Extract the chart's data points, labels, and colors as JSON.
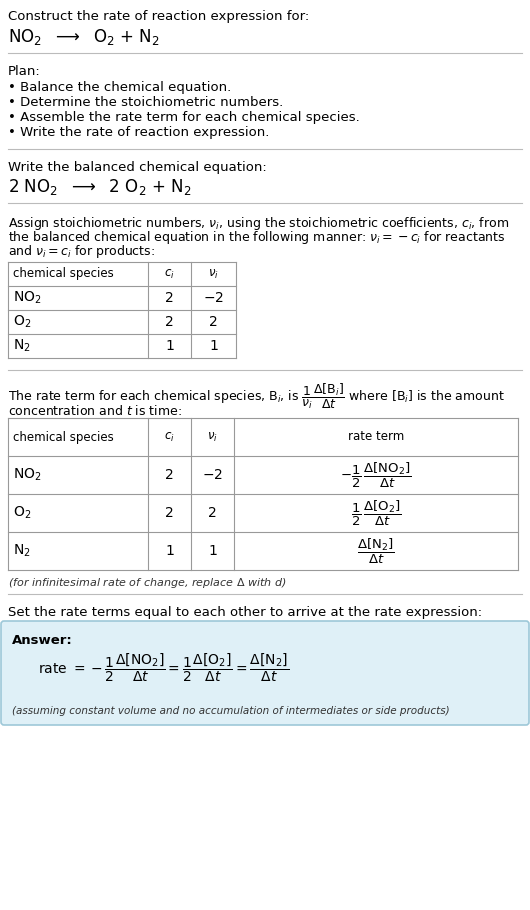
{
  "bg_color": "#ffffff",
  "text_color": "#000000",
  "divider_color": "#bbbbbb",
  "plan_items": [
    "• Balance the chemical equation.",
    "• Determine the stoichiometric numbers.",
    "• Assemble the rate term for each chemical species.",
    "• Write the rate of reaction expression."
  ],
  "answer_bg": "#dff0f7",
  "answer_border": "#9ec8d8",
  "table_line_color": "#999999"
}
